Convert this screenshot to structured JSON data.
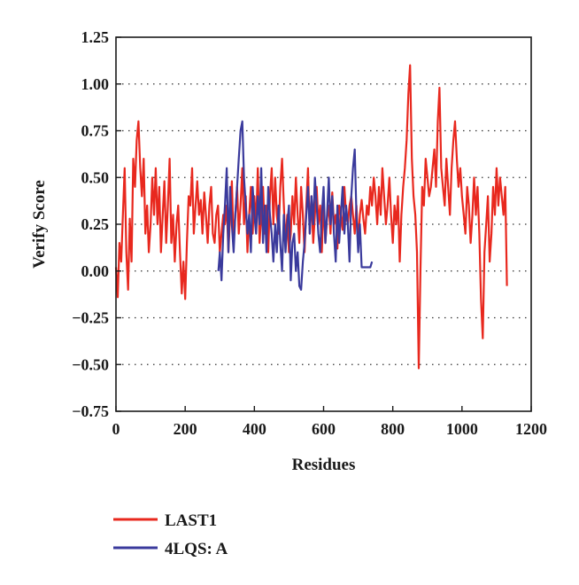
{
  "chart_data": {
    "type": "line",
    "xlabel": "Residues",
    "ylabel": "Verify Score",
    "xlim": [
      0,
      1200
    ],
    "ylim": [
      -0.75,
      1.25
    ],
    "xticks": [
      0,
      200,
      400,
      600,
      800,
      1000,
      1200
    ],
    "yticks": [
      1.25,
      1.0,
      0.75,
      0.5,
      0.25,
      0.0,
      -0.25,
      -0.5,
      -0.75
    ],
    "ytick_labels": [
      "1.25",
      "1.00",
      "0.75",
      "0.50",
      "0.25",
      "0.00",
      "−0.25",
      "−0.50",
      "−0.75"
    ],
    "grid": "horizontal dotted",
    "legend_position": "below",
    "series": [
      {
        "name": "LAST1",
        "color": "#e8281e",
        "x": [
          0,
          5,
          10,
          15,
          20,
          25,
          30,
          35,
          40,
          45,
          50,
          55,
          60,
          65,
          70,
          75,
          80,
          85,
          90,
          95,
          100,
          105,
          110,
          115,
          120,
          125,
          130,
          135,
          140,
          145,
          150,
          155,
          160,
          165,
          170,
          175,
          180,
          185,
          190,
          195,
          200,
          205,
          210,
          215,
          220,
          225,
          230,
          235,
          240,
          245,
          250,
          255,
          260,
          265,
          270,
          275,
          280,
          285,
          290,
          295,
          300,
          305,
          310,
          315,
          320,
          325,
          330,
          335,
          340,
          345,
          350,
          355,
          360,
          365,
          370,
          375,
          380,
          385,
          390,
          395,
          400,
          405,
          410,
          415,
          420,
          425,
          430,
          435,
          440,
          445,
          450,
          455,
          460,
          465,
          470,
          475,
          480,
          485,
          490,
          495,
          500,
          505,
          510,
          515,
          520,
          525,
          530,
          535,
          540,
          545,
          550,
          555,
          560,
          565,
          570,
          575,
          580,
          585,
          590,
          595,
          600,
          605,
          610,
          615,
          620,
          625,
          630,
          635,
          640,
          645,
          650,
          655,
          660,
          665,
          670,
          675,
          680,
          685,
          690,
          695,
          700,
          705,
          710,
          715,
          720,
          725,
          730,
          735,
          740,
          745,
          750,
          755,
          760,
          765,
          770,
          775,
          780,
          785,
          790,
          795,
          800,
          805,
          810,
          815,
          820,
          825,
          830,
          835,
          840,
          845,
          850,
          855,
          860,
          865,
          870,
          875,
          880,
          885,
          890,
          895,
          900,
          905,
          910,
          915,
          920,
          925,
          930,
          935,
          940,
          945,
          950,
          955,
          960,
          965,
          970,
          975,
          980,
          985,
          990,
          995,
          1000,
          1005,
          1010,
          1015,
          1020,
          1025,
          1030,
          1035,
          1040,
          1045,
          1050,
          1055,
          1060,
          1065,
          1070,
          1075,
          1080,
          1085,
          1090,
          1095,
          1100,
          1105,
          1110,
          1115,
          1120,
          1125,
          1130
        ],
        "values": [
          0.02,
          -0.14,
          0.15,
          0.05,
          0.3,
          0.55,
          0.1,
          -0.1,
          0.28,
          0.05,
          0.6,
          0.45,
          0.7,
          0.8,
          0.55,
          0.4,
          0.6,
          0.2,
          0.35,
          0.1,
          0.25,
          0.5,
          0.3,
          0.55,
          0.25,
          0.45,
          0.1,
          0.3,
          0.48,
          0.15,
          0.35,
          0.6,
          0.15,
          0.3,
          0.05,
          0.25,
          0.35,
          0.1,
          -0.12,
          0.05,
          -0.15,
          0.15,
          0.4,
          0.35,
          0.55,
          0.2,
          0.35,
          0.48,
          0.3,
          0.38,
          0.2,
          0.42,
          0.3,
          0.15,
          0.35,
          0.45,
          0.2,
          0.15,
          0.3,
          0.35,
          0.1,
          0.2,
          0.3,
          0.25,
          0.35,
          0.1,
          0.3,
          0.48,
          0.15,
          0.3,
          0.45,
          0.2,
          0.35,
          0.55,
          0.25,
          0.4,
          0.1,
          0.3,
          0.45,
          0.2,
          0.4,
          0.25,
          0.55,
          0.15,
          0.3,
          0.45,
          0.2,
          0.35,
          0.1,
          0.4,
          0.55,
          0.25,
          0.5,
          0.3,
          0.2,
          0.45,
          0.6,
          0.35,
          0.15,
          0.3,
          0.1,
          0.2,
          0.4,
          0.25,
          0.5,
          0.3,
          0.15,
          0.45,
          0.3,
          0.1,
          0.35,
          0.55,
          0.2,
          0.4,
          0.15,
          0.3,
          0.45,
          0.25,
          0.35,
          0.1,
          0.38,
          0.15,
          0.28,
          0.35,
          0.2,
          0.42,
          0.25,
          0.3,
          0.12,
          0.35,
          0.3,
          0.22,
          0.45,
          0.3,
          0.25,
          0.35,
          0.4,
          0.3,
          0.2,
          0.35,
          0.15,
          0.3,
          0.38,
          0.28,
          0.2,
          0.35,
          0.3,
          0.45,
          0.35,
          0.5,
          0.4,
          0.25,
          0.45,
          0.3,
          0.55,
          0.4,
          0.25,
          0.35,
          0.5,
          0.3,
          0.15,
          0.35,
          0.25,
          0.4,
          0.05,
          0.3,
          0.45,
          0.55,
          0.7,
          0.95,
          1.1,
          0.6,
          0.4,
          0.3,
          0.1,
          -0.52,
          0.0,
          0.45,
          0.35,
          0.6,
          0.5,
          0.4,
          0.45,
          0.55,
          0.65,
          0.45,
          0.8,
          0.98,
          0.55,
          0.45,
          0.35,
          0.6,
          0.45,
          0.3,
          0.55,
          0.7,
          0.8,
          0.6,
          0.45,
          0.55,
          0.4,
          0.3,
          0.2,
          0.45,
          0.35,
          0.15,
          0.3,
          0.5,
          0.3,
          0.45,
          0.2,
          -0.15,
          -0.36,
          0.1,
          0.25,
          0.4,
          0.05,
          0.2,
          0.45,
          0.3,
          0.55,
          0.35,
          0.5,
          0.4,
          0.3,
          0.45,
          -0.08
        ],
        "peaks_note": null
      },
      {
        "name": "4LQS:  A",
        "color": "#3a3a9c",
        "x": [
          296,
          300,
          305,
          310,
          315,
          320,
          325,
          330,
          335,
          340,
          345,
          350,
          355,
          360,
          365,
          370,
          375,
          380,
          385,
          390,
          395,
          400,
          405,
          410,
          415,
          420,
          425,
          430,
          435,
          440,
          445,
          450,
          455,
          460,
          465,
          470,
          475,
          480,
          485,
          490,
          495,
          500,
          505,
          510,
          515,
          520,
          525,
          530,
          535,
          540,
          545,
          550,
          555,
          560,
          565,
          570,
          575,
          580,
          585,
          590,
          595,
          600,
          605,
          610,
          615,
          620,
          625,
          630,
          635,
          640,
          645,
          650,
          655,
          660,
          665,
          670,
          675,
          680,
          685,
          690,
          695,
          700,
          705,
          710,
          715,
          720,
          725,
          730,
          735,
          740
        ],
        "values": [
          0.0,
          0.1,
          -0.05,
          0.2,
          0.35,
          0.55,
          0.1,
          0.45,
          0.25,
          0.1,
          0.3,
          0.45,
          0.6,
          0.75,
          0.8,
          0.5,
          0.35,
          0.2,
          0.3,
          0.1,
          0.45,
          0.3,
          0.2,
          0.4,
          0.25,
          0.55,
          0.15,
          0.35,
          0.1,
          0.45,
          0.3,
          0.2,
          0.05,
          0.25,
          0.1,
          0.35,
          0.15,
          0.0,
          0.3,
          0.1,
          0.25,
          0.35,
          -0.05,
          0.15,
          0.2,
          0.0,
          0.1,
          -0.08,
          -0.1,
          0.05,
          0.15,
          0.3,
          0.45,
          0.2,
          0.4,
          0.25,
          0.5,
          0.35,
          0.2,
          0.1,
          0.3,
          0.45,
          0.15,
          0.3,
          0.5,
          0.25,
          0.4,
          0.2,
          0.05,
          0.35,
          0.15,
          0.3,
          0.45,
          0.2,
          0.35,
          0.25,
          0.05,
          0.4,
          0.55,
          0.65,
          0.3,
          0.1,
          0.25,
          0.02,
          0.02,
          0.02,
          0.02,
          0.02,
          0.02,
          0.05
        ]
      }
    ]
  }
}
